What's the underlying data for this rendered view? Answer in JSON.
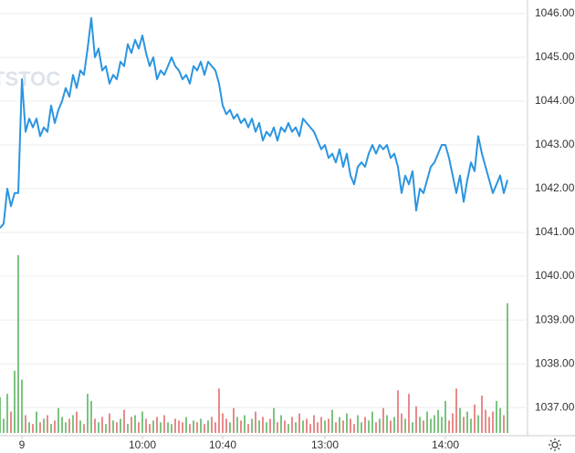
{
  "chart_data": {
    "type": "line",
    "watermark": "TSTOC",
    "values": [
      1041.1,
      1041.2,
      1042.0,
      1041.6,
      1041.9,
      1041.9,
      1044.5,
      1043.3,
      1043.6,
      1043.4,
      1043.6,
      1043.2,
      1043.4,
      1043.3,
      1043.9,
      1043.5,
      1043.8,
      1044.0,
      1044.3,
      1044.1,
      1044.6,
      1044.3,
      1044.7,
      1044.6,
      1045.2,
      1045.9,
      1045.0,
      1045.2,
      1044.7,
      1044.8,
      1044.4,
      1044.6,
      1044.5,
      1044.9,
      1044.8,
      1045.3,
      1045.1,
      1045.4,
      1045.2,
      1045.5,
      1045.1,
      1044.8,
      1045.0,
      1044.5,
      1044.7,
      1044.6,
      1044.8,
      1045.0,
      1044.8,
      1044.7,
      1044.5,
      1044.6,
      1044.4,
      1044.8,
      1044.7,
      1044.9,
      1044.6,
      1044.9,
      1044.8,
      1044.7,
      1044.4,
      1043.9,
      1043.7,
      1043.8,
      1043.6,
      1043.7,
      1043.5,
      1043.6,
      1043.4,
      1043.6,
      1043.3,
      1043.5,
      1043.1,
      1043.3,
      1043.2,
      1043.4,
      1043.1,
      1043.4,
      1043.3,
      1043.5,
      1043.3,
      1043.4,
      1043.2,
      1043.6,
      1043.5,
      1043.4,
      1043.3,
      1043.1,
      1042.9,
      1043.0,
      1042.7,
      1042.8,
      1042.6,
      1042.9,
      1042.5,
      1042.8,
      1042.3,
      1042.1,
      1042.5,
      1042.6,
      1042.5,
      1042.8,
      1043.0,
      1042.8,
      1043.0,
      1042.9,
      1043.0,
      1042.7,
      1042.8,
      1042.5,
      1041.9,
      1042.3,
      1042.1,
      1042.4,
      1041.5,
      1042.0,
      1041.9,
      1042.2,
      1042.5,
      1042.6,
      1042.8,
      1043.0,
      1043.0,
      1042.7,
      1042.3,
      1041.9,
      1042.3,
      1041.7,
      1042.2,
      1042.6,
      1042.4,
      1043.2,
      1042.8,
      1042.5,
      1042.2,
      1041.9,
      1042.1,
      1042.3,
      1041.9,
      1042.2
    ],
    "color": "#2b95e0",
    "volume": [
      20,
      8,
      22,
      12,
      35,
      100,
      30,
      10,
      6,
      5,
      12,
      6,
      8,
      10,
      5,
      7,
      14,
      9,
      6,
      8,
      10,
      12,
      7,
      5,
      22,
      18,
      8,
      6,
      9,
      5,
      11,
      7,
      6,
      8,
      13,
      5,
      9,
      10,
      6,
      12,
      8,
      5,
      7,
      9,
      6,
      10,
      6,
      5,
      8,
      7,
      6,
      9,
      5,
      7,
      6,
      8,
      5,
      7,
      9,
      6,
      25,
      11,
      8,
      6,
      14,
      9,
      7,
      10,
      5,
      8,
      12,
      7,
      9,
      6,
      8,
      14,
      6,
      10,
      7,
      5,
      9,
      6,
      11,
      7,
      8,
      5,
      10,
      6,
      9,
      7,
      8,
      13,
      6,
      9,
      7,
      11,
      8,
      5,
      10,
      6,
      9,
      7,
      12,
      6,
      8,
      14,
      10,
      7,
      9,
      24,
      11,
      8,
      22,
      6,
      15,
      9,
      7,
      12,
      8,
      10,
      13,
      9,
      18,
      7,
      11,
      25,
      14,
      9,
      12,
      8,
      16,
      10,
      21,
      13,
      9,
      12,
      18,
      14,
      10,
      73
    ],
    "up_color": "#7cc47f",
    "down_color": "#e88a8a",
    "vlim": [
      0,
      100
    ],
    "xlim": [
      0,
      144.5
    ],
    "xticks": [
      {
        "value": 6,
        "label": "9"
      },
      {
        "value": 39,
        "label": "10:00"
      },
      {
        "value": 61,
        "label": "10:40"
      },
      {
        "value": 89,
        "label": "13:00"
      },
      {
        "value": 122,
        "label": "14:00"
      }
    ],
    "ylim": [
      1036.42,
      1046.31
    ],
    "yticks": [
      {
        "value": 1037,
        "label": "1037.00"
      },
      {
        "value": 1038,
        "label": "1038.00"
      },
      {
        "value": 1039,
        "label": "1039.00"
      },
      {
        "value": 1040,
        "label": "1040.00"
      },
      {
        "value": 1041,
        "label": "1041.00"
      },
      {
        "value": 1042,
        "label": "1042.00"
      },
      {
        "value": 1043,
        "label": "1043.00"
      },
      {
        "value": 1044,
        "label": "1044.00"
      },
      {
        "value": 1045,
        "label": "1045.00"
      },
      {
        "value": 1046,
        "label": "1046.00"
      }
    ],
    "grid": true
  }
}
